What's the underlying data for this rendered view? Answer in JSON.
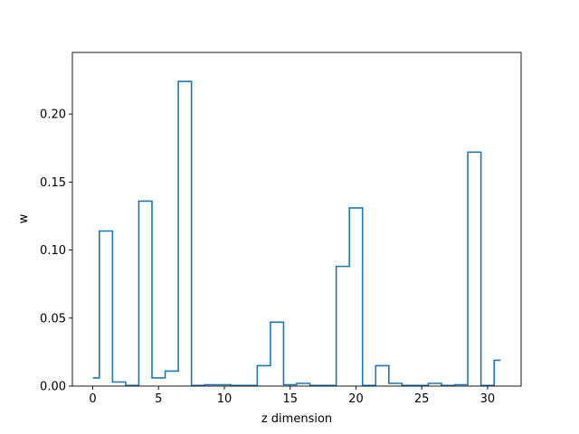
{
  "chart_data": {
    "type": "line",
    "style": "step",
    "xlabel": "z dimension",
    "ylabel": "w",
    "xlim": [
      -1.55,
      32.55
    ],
    "ylim": [
      0,
      0.2453
    ],
    "xticks": [
      0,
      5,
      10,
      15,
      20,
      25,
      30
    ],
    "yticks": [
      0.0,
      0.05,
      0.1,
      0.15,
      0.2
    ],
    "ytick_labels": [
      "0.00",
      "0.05",
      "0.10",
      "0.15",
      "0.20"
    ],
    "x": [
      0,
      1,
      2,
      3,
      4,
      5,
      6,
      7,
      8,
      9,
      10,
      11,
      12,
      13,
      14,
      15,
      16,
      17,
      18,
      19,
      20,
      21,
      22,
      23,
      24,
      25,
      26,
      27,
      28,
      29,
      30,
      31
    ],
    "series": [
      {
        "values": [
          0.006,
          0.114,
          0.003,
          0.0005,
          0.136,
          0.006,
          0.011,
          0.224,
          0.0005,
          0.001,
          0.001,
          0.0005,
          0.0005,
          0.015,
          0.047,
          0.001,
          0.002,
          0.0005,
          0.0005,
          0.088,
          0.131,
          0.0005,
          0.015,
          0.002,
          0.0005,
          0.0005,
          0.002,
          0.0005,
          0.001,
          0.172,
          0.0005,
          0.019
        ],
        "color": "#1f77b4"
      }
    ],
    "grid": false,
    "legend": "none"
  }
}
